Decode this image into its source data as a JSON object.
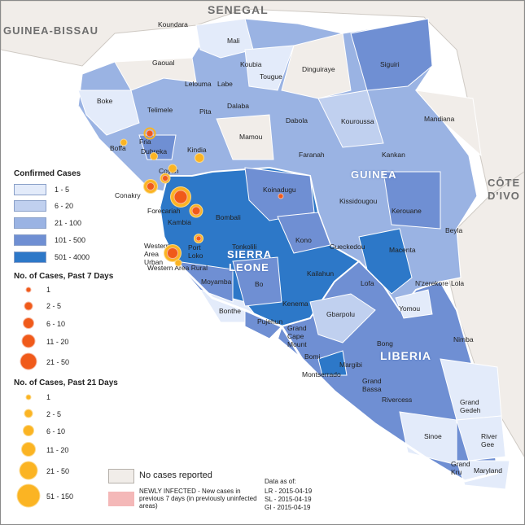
{
  "countries": {
    "senegal": "SENEGAL",
    "guinea_bissau": "GUINEA-BISSAU",
    "cote_divoire": "CÔTE D'IVO",
    "guinea": "GUINEA",
    "sierra_leone_1": "SIERRA",
    "sierra_leone_2": "LEONE",
    "liberia": "LIBERIA"
  },
  "districts": [
    "Koundara",
    "Mali",
    "Gaoual",
    "Koubia",
    "Lelouma",
    "Labe",
    "Tougue",
    "Dinguiraye",
    "Siguiri",
    "Boke",
    "Telimele",
    "Pita",
    "Dalaba",
    "Mandiana",
    "Dabola",
    "Kouroussa",
    "Mamou",
    "Fria",
    "Boffa",
    "Dubreka",
    "Kindia",
    "Faranah",
    "Kankan",
    "Coyah",
    "Koinadugu",
    "Conakry",
    "Forecariah",
    "Bombali",
    "Kissidougou",
    "Kerouane",
    "Kambia",
    "Beyla",
    "Western Area Urban",
    "Port Loko",
    "Tonkolili",
    "Kono",
    "Gueckedou",
    "Macenta",
    "Western Area Rural",
    "Moyamba",
    "Bo",
    "Kailahun",
    "Lofa",
    "N'zerekore",
    "Lola",
    "Bonthe",
    "Kenema",
    "Yomou",
    "Pujehun",
    "Gbarpolu",
    "Grand Cape Mount",
    "Bong",
    "Nimba",
    "Bomi",
    "Margibi",
    "Montserrado",
    "Grand Bassa",
    "Rivercess",
    "Grand Gedeh",
    "Sinoe",
    "River Gee",
    "Grand Kru",
    "Maryland"
  ],
  "legend": {
    "confirmed_title": "Confirmed Cases",
    "confirmed_classes": [
      {
        "label": "1 - 5",
        "color": "#e3ebfa"
      },
      {
        "label": "6 - 20",
        "color": "#c0d0ef"
      },
      {
        "label": "21 - 100",
        "color": "#9ab3e3"
      },
      {
        "label": "101 - 500",
        "color": "#6f8fd3"
      },
      {
        "label": "501 - 4000",
        "color": "#2d78c8"
      }
    ],
    "past7_title": "No. of Cases, Past 7 Days",
    "past7_classes": [
      "1",
      "2 - 5",
      "6 - 10",
      "11 - 20",
      "21 - 50"
    ],
    "past21_title": "No. of Cases, Past 21 Days",
    "past21_classes": [
      "1",
      "2 - 5",
      "6 - 10",
      "11 - 20",
      "21 - 50",
      "51 - 150"
    ],
    "no_cases": "No cases reported",
    "no_cases_color": "#f1ede9",
    "newly_infected": "NEWLY INFECTED - New cases in previous 7 days (in previously uninfected areas)",
    "newly_color": "#f4b8b8"
  },
  "data_as_of": {
    "title": "Data as of:",
    "lines": [
      "LR - 2015-04-19",
      "SL - 2015-04-19",
      "GI - 2015-04-19"
    ]
  },
  "colors": {
    "sea": "#ffffff",
    "border_intl": "#ffffff",
    "orange": "#f05a1a",
    "yellow": "#fbb423"
  }
}
